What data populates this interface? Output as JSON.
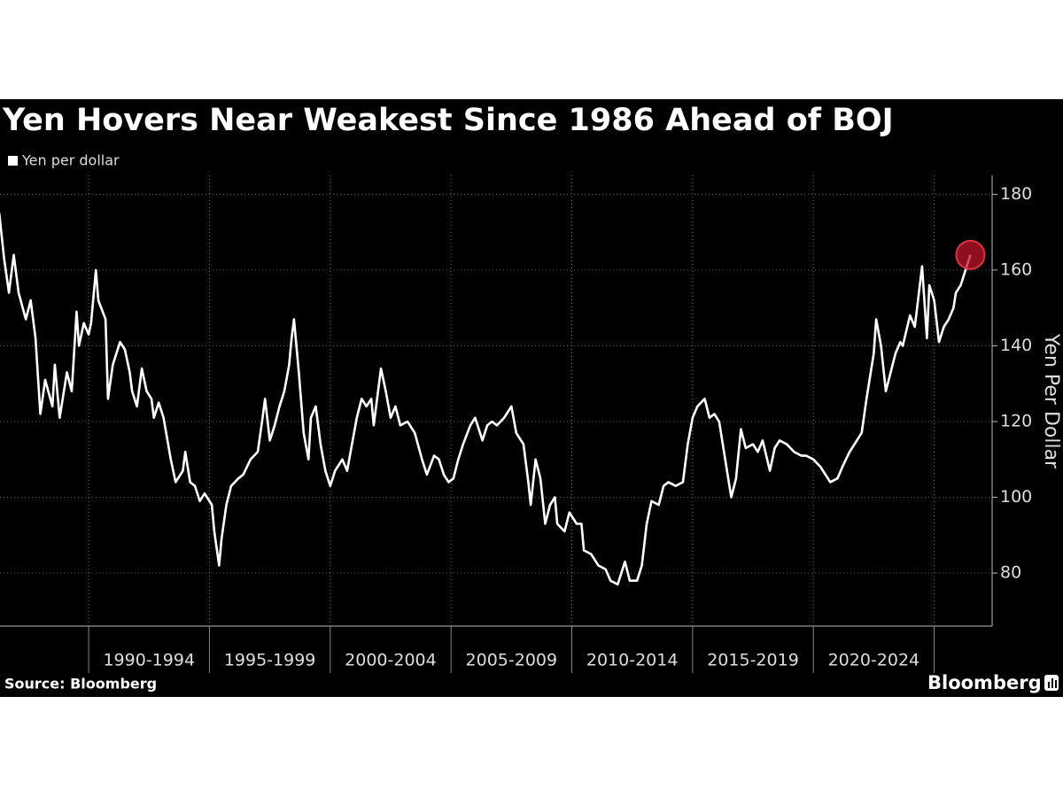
{
  "chart_data": {
    "type": "line",
    "title": "Yen Hovers Near Weakest Since 1986 Ahead of BOJ",
    "y_label": "Yen Per Dollar",
    "source": "Source: Bloomberg",
    "logo": "Bloomberg",
    "grid": true,
    "highlight_last": true,
    "xlim": [
      1986.33,
      2027.4
    ],
    "xticks": [
      1990,
      1995,
      2000,
      2005,
      2010,
      2015,
      2020,
      2025
    ],
    "x_periods": [
      "1990-1994",
      "1995-1999",
      "2000-2004",
      "2005-2009",
      "2010-2014",
      "2015-2019",
      "2020-2024"
    ],
    "ylim": [
      66,
      185
    ],
    "yticks": [
      80,
      100,
      120,
      140,
      160,
      180
    ],
    "x": [
      1986.3,
      1986.5,
      1986.7,
      1986.9,
      1987.1,
      1987.4,
      1987.6,
      1987.8,
      1988.0,
      1988.2,
      1988.5,
      1988.6,
      1988.8,
      1989.1,
      1989.3,
      1989.5,
      1989.6,
      1989.8,
      1990.0,
      1990.1,
      1990.3,
      1990.4,
      1990.7,
      1990.8,
      1991.0,
      1991.3,
      1991.5,
      1991.7,
      1991.8,
      1992.0,
      1992.2,
      1992.4,
      1992.6,
      1992.7,
      1992.9,
      1993.1,
      1993.4,
      1993.6,
      1993.9,
      1994.0,
      1994.2,
      1994.4,
      1994.6,
      1994.8,
      1995.1,
      1995.2,
      1995.4,
      1995.5,
      1995.7,
      1995.9,
      1996.2,
      1996.4,
      1996.7,
      1997.0,
      1997.2,
      1997.3,
      1997.5,
      1997.7,
      1997.9,
      1998.1,
      1998.3,
      1998.4,
      1998.5,
      1998.7,
      1998.9,
      1999.1,
      1999.2,
      1999.4,
      1999.6,
      1999.8,
      2000.0,
      2000.2,
      2000.5,
      2000.7,
      2000.9,
      2001.1,
      2001.3,
      2001.5,
      2001.7,
      2001.8,
      2002.1,
      2002.3,
      2002.5,
      2002.7,
      2002.9,
      2003.2,
      2003.5,
      2003.8,
      2004.0,
      2004.3,
      2004.5,
      2004.7,
      2004.9,
      2005.1,
      2005.3,
      2005.5,
      2005.8,
      2006.0,
      2006.3,
      2006.5,
      2006.7,
      2006.9,
      2007.2,
      2007.5,
      2007.7,
      2008.0,
      2008.2,
      2008.3,
      2008.5,
      2008.7,
      2008.9,
      2009.1,
      2009.3,
      2009.4,
      2009.7,
      2009.9,
      2010.2,
      2010.4,
      2010.5,
      2010.8,
      2011.1,
      2011.4,
      2011.6,
      2011.9,
      2012.2,
      2012.4,
      2012.7,
      2012.9,
      2013.1,
      2013.3,
      2013.6,
      2013.8,
      2014.0,
      2014.3,
      2014.6,
      2014.8,
      2015.0,
      2015.2,
      2015.5,
      2015.7,
      2015.9,
      2016.1,
      2016.3,
      2016.5,
      2016.6,
      2016.8,
      2017.0,
      2017.2,
      2017.5,
      2017.7,
      2017.9,
      2018.2,
      2018.4,
      2018.6,
      2018.9,
      2019.2,
      2019.5,
      2019.7,
      2020.0,
      2020.3,
      2020.5,
      2020.7,
      2021.0,
      2021.2,
      2021.5,
      2021.7,
      2022.0,
      2022.2,
      2022.5,
      2022.6,
      2022.8,
      2023.0,
      2023.2,
      2023.4,
      2023.6,
      2023.7,
      2024.0,
      2024.2,
      2024.5,
      2024.7,
      2024.8,
      2025.0,
      2025.2,
      2025.4,
      2025.6,
      2025.8,
      2025.9,
      2026.1,
      2026.3,
      2026.5
    ],
    "series": [
      {
        "name": "Yen per dollar",
        "color": "#ffffff",
        "values": [
          175,
          163,
          154,
          164,
          154,
          147,
          152,
          142,
          122,
          131,
          124,
          135,
          121,
          133,
          128,
          149,
          140,
          146,
          143,
          146,
          160,
          152,
          147,
          126,
          135,
          141,
          139,
          133,
          128,
          124,
          134,
          128,
          126,
          121,
          125,
          121,
          110,
          104,
          107,
          112,
          104,
          103,
          99,
          101,
          98,
          91,
          82,
          89,
          98,
          103,
          105,
          106,
          110,
          112,
          121,
          126,
          115,
          119,
          124,
          128,
          135,
          142,
          147,
          133,
          117,
          110,
          121,
          124,
          114,
          107,
          103,
          107,
          110,
          107,
          114,
          121,
          126,
          124,
          126,
          119,
          134,
          128,
          121,
          124,
          119,
          120,
          117,
          110,
          106,
          111,
          110,
          106,
          104,
          105,
          110,
          114,
          119,
          121,
          115,
          119,
          120,
          119,
          121,
          124,
          117,
          114,
          104,
          98,
          110,
          105,
          93,
          98,
          100,
          93,
          91,
          96,
          93,
          93,
          86,
          85,
          82,
          81,
          78,
          77,
          83,
          78,
          78,
          82,
          93,
          99,
          98,
          103,
          104,
          103,
          104,
          114,
          121,
          124,
          126,
          121,
          122,
          120,
          112,
          104,
          100,
          105,
          118,
          113,
          114,
          112,
          115,
          107,
          113,
          115,
          114,
          112,
          111,
          111,
          110,
          108,
          106,
          104,
          105,
          108,
          112,
          114,
          117,
          126,
          138,
          147,
          140,
          128,
          133,
          138,
          141,
          140,
          148,
          145,
          161,
          142,
          156,
          152,
          141,
          145,
          147,
          150,
          154,
          156,
          160,
          164
        ]
      }
    ]
  }
}
